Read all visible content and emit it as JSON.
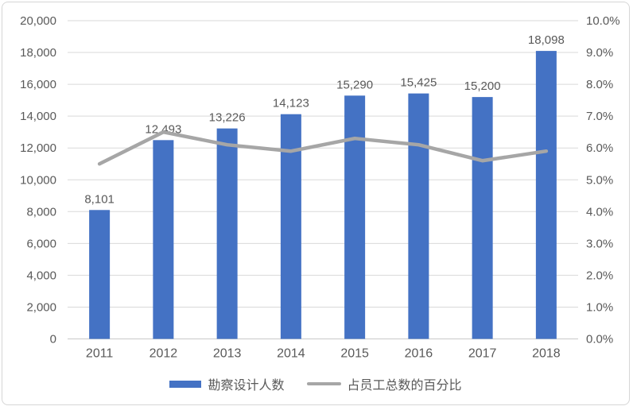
{
  "chart_data": {
    "type": "combo",
    "title": "",
    "categories": [
      "2011",
      "2012",
      "2013",
      "2014",
      "2015",
      "2016",
      "2017",
      "2018"
    ],
    "series": [
      {
        "name": "勘察设计人数",
        "type": "bar",
        "axis": "left",
        "values": [
          8101,
          12493,
          13226,
          14123,
          15290,
          15425,
          15200,
          18098
        ],
        "data_labels": [
          "8,101",
          "12,493",
          "13,226",
          "14,123",
          "15,290",
          "15,425",
          "15,200",
          "18,098"
        ]
      },
      {
        "name": "占员工总数的百分比",
        "type": "line",
        "axis": "right",
        "values": [
          5.5,
          6.5,
          6.1,
          5.9,
          6.3,
          6.1,
          5.6,
          5.9
        ]
      }
    ],
    "left_axis": {
      "min": 0,
      "max": 20000,
      "tick_values": [
        0,
        2000,
        4000,
        6000,
        8000,
        10000,
        12000,
        14000,
        16000,
        18000,
        20000
      ],
      "tick_labels": [
        "0",
        "2,000",
        "4,000",
        "6,000",
        "8,000",
        "10,000",
        "12,000",
        "14,000",
        "16,000",
        "18,000",
        "20,000"
      ]
    },
    "right_axis": {
      "min": 0,
      "max": 10,
      "tick_values": [
        0,
        1,
        2,
        3,
        4,
        5,
        6,
        7,
        8,
        9,
        10
      ],
      "tick_labels": [
        "0.0%",
        "1.0%",
        "2.0%",
        "3.0%",
        "4.0%",
        "5.0%",
        "6.0%",
        "7.0%",
        "8.0%",
        "9.0%",
        "10.0%"
      ]
    },
    "grid": true,
    "legend_position": "bottom",
    "colors": {
      "bar": "#4472C4",
      "line": "#A6A6A6",
      "gridline": "#D9D9D9",
      "axis_line": "#C9C9C9",
      "text": "#595959"
    }
  }
}
